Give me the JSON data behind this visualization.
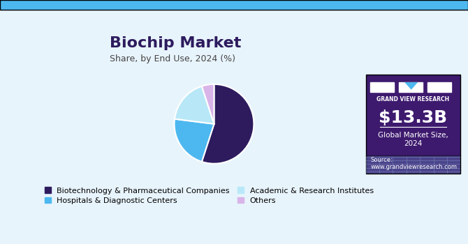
{
  "title": "Biochip Market",
  "subtitle": "Share, by End Use, 2024 (%)",
  "slices": [
    {
      "label": "Biotechnology & Pharmaceutical Companies",
      "value": 55,
      "color": "#2d1b5e"
    },
    {
      "label": "Hospitals & Diagnostic Centers",
      "value": 22,
      "color": "#4db8f0"
    },
    {
      "label": "Academic & Research Institutes",
      "value": 18,
      "color": "#b8e8f8"
    },
    {
      "label": "Others",
      "value": 5,
      "color": "#d8b4e8"
    }
  ],
  "start_angle": 90,
  "bg_color": "#e8f4fc",
  "sidebar_bg": "#3d1a6e",
  "sidebar_text_large": "$13.3B",
  "sidebar_text_small": "Global Market Size,\n2024",
  "sidebar_source": "Source:\nwww.grandviewresearch.com",
  "title_color": "#2d1b5e",
  "subtitle_color": "#444444",
  "legend_fontsize": 8,
  "title_fontsize": 16,
  "subtitle_fontsize": 9
}
